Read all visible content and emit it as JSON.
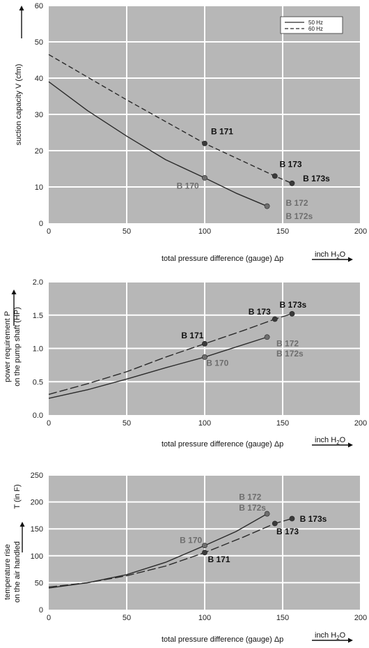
{
  "chart_data": [
    {
      "type": "line",
      "ylabel": "suction capacity V (cfm)",
      "xlabel": "total pressure difference (gauge)  Δp",
      "unit_main": "inch H",
      "unit_sub": "2",
      "unit_tail": "O",
      "xlim": [
        0,
        200
      ],
      "ylim": [
        0,
        60
      ],
      "xticks": [
        "0",
        "50",
        "100",
        "150",
        "200"
      ],
      "yticks": [
        "0",
        "10",
        "20",
        "30",
        "40",
        "50",
        "60"
      ],
      "legend": [
        "50 Hz",
        "60 Hz"
      ],
      "series": [
        {
          "name": "50 Hz",
          "style": "solid",
          "x": [
            0,
            25,
            50,
            75,
            100,
            120,
            140
          ],
          "y": [
            39,
            31,
            24,
            17.5,
            12.5,
            8.3,
            4.7
          ]
        },
        {
          "name": "60 Hz",
          "style": "dashed",
          "x": [
            0,
            50,
            100,
            145,
            156
          ],
          "y": [
            46.5,
            34,
            22,
            13,
            11
          ]
        }
      ],
      "points": [
        {
          "x": 100,
          "y": 22,
          "color": "#3a3a3a"
        },
        {
          "x": 145,
          "y": 13,
          "color": "#3a3a3a"
        },
        {
          "x": 156,
          "y": 11,
          "color": "#3a3a3a"
        },
        {
          "x": 100,
          "y": 12.5,
          "color": "#6e6e6e"
        },
        {
          "x": 140,
          "y": 4.7,
          "color": "#6e6e6e"
        }
      ],
      "labels": [
        {
          "text": "B 171",
          "x": 104,
          "y": 24.5,
          "tone": "dark"
        },
        {
          "text": "B 173",
          "x": 148,
          "y": 15.5,
          "tone": "dark"
        },
        {
          "text": "B 173s",
          "x": 163,
          "y": 11.5,
          "tone": "dark"
        },
        {
          "text": "B 170",
          "x": 82,
          "y": 9.5,
          "tone": "grey"
        },
        {
          "text": "B 172",
          "x": 152,
          "y": 4.8,
          "tone": "grey"
        },
        {
          "text": "B 172s",
          "x": 152,
          "y": 1.2,
          "tone": "grey"
        }
      ]
    },
    {
      "type": "line",
      "ylabel": "power requirement P",
      "ylabel2": "on the pump shaft (HP)",
      "xlabel": "total pressure difference (gauge)  Δp",
      "unit_main": "inch H",
      "unit_sub": "2",
      "unit_tail": "O",
      "xlim": [
        0,
        200
      ],
      "ylim": [
        0,
        2.0
      ],
      "xticks": [
        "0",
        "50",
        "100",
        "150",
        "200"
      ],
      "yticks": [
        "0.0",
        "0.5",
        "1.0",
        "1.5",
        "2.0"
      ],
      "series": [
        {
          "name": "50 Hz",
          "style": "solid",
          "x": [
            0,
            25,
            50,
            75,
            100,
            120,
            140
          ],
          "y": [
            0.25,
            0.38,
            0.54,
            0.71,
            0.87,
            1.02,
            1.17
          ]
        },
        {
          "name": "60 Hz",
          "style": "dashed",
          "x": [
            0,
            25,
            50,
            75,
            100,
            125,
            145,
            156
          ],
          "y": [
            0.31,
            0.47,
            0.65,
            0.87,
            1.07,
            1.27,
            1.44,
            1.52
          ]
        }
      ],
      "points": [
        {
          "x": 100,
          "y": 1.07,
          "color": "#3a3a3a"
        },
        {
          "x": 145,
          "y": 1.44,
          "color": "#3a3a3a"
        },
        {
          "x": 156,
          "y": 1.52,
          "color": "#3a3a3a"
        },
        {
          "x": 100,
          "y": 0.87,
          "color": "#6e6e6e"
        },
        {
          "x": 140,
          "y": 1.17,
          "color": "#6e6e6e"
        }
      ],
      "labels": [
        {
          "text": "B 171",
          "x": 85,
          "y": 1.15,
          "tone": "dark"
        },
        {
          "text": "B 173",
          "x": 128,
          "y": 1.51,
          "tone": "dark"
        },
        {
          "text": "B 173s",
          "x": 148,
          "y": 1.61,
          "tone": "dark"
        },
        {
          "text": "B 170",
          "x": 101,
          "y": 0.74,
          "tone": "grey"
        },
        {
          "text": "B 172",
          "x": 146,
          "y": 1.03,
          "tone": "grey"
        },
        {
          "text": "B 172s",
          "x": 146,
          "y": 0.88,
          "tone": "grey"
        }
      ]
    },
    {
      "type": "line",
      "ylabel": "temperature rise",
      "ylabel2": "on the air handled",
      "ylabel_top": "T   (in F)",
      "xlabel": "total pressure difference (gauge)  Δp",
      "unit_main": "inch H",
      "unit_sub": "2",
      "unit_tail": "O",
      "xlim": [
        0,
        200
      ],
      "ylim": [
        0,
        250
      ],
      "xticks": [
        "0",
        "50",
        "100",
        "150",
        "200"
      ],
      "yticks": [
        "0",
        "50",
        "100",
        "150",
        "200",
        "250"
      ],
      "series": [
        {
          "name": "50 Hz",
          "style": "solid",
          "x": [
            0,
            25,
            50,
            75,
            100,
            120,
            140
          ],
          "y": [
            40,
            50,
            65,
            88,
            119,
            145,
            178
          ]
        },
        {
          "name": "60 Hz",
          "style": "dashed",
          "x": [
            0,
            25,
            50,
            75,
            100,
            125,
            145,
            156
          ],
          "y": [
            42,
            50,
            63,
            81,
            106,
            135,
            160,
            169
          ]
        }
      ],
      "points": [
        {
          "x": 100,
          "y": 106,
          "color": "#3a3a3a"
        },
        {
          "x": 145,
          "y": 160,
          "color": "#3a3a3a"
        },
        {
          "x": 156,
          "y": 169,
          "color": "#3a3a3a"
        },
        {
          "x": 100,
          "y": 119,
          "color": "#6e6e6e"
        },
        {
          "x": 140,
          "y": 178,
          "color": "#6e6e6e"
        }
      ],
      "labels": [
        {
          "text": "B 170",
          "x": 84,
          "y": 124,
          "tone": "grey"
        },
        {
          "text": "B 171",
          "x": 102,
          "y": 88,
          "tone": "dark"
        },
        {
          "text": "B 172",
          "x": 122,
          "y": 204,
          "tone": "grey"
        },
        {
          "text": "B 172s",
          "x": 122,
          "y": 184,
          "tone": "grey"
        },
        {
          "text": "B 173",
          "x": 146,
          "y": 140,
          "tone": "dark"
        },
        {
          "text": "B 173s",
          "x": 161,
          "y": 163,
          "tone": "dark"
        }
      ]
    }
  ],
  "colors": {
    "plot_bg": "#b7b7b7",
    "grid": "#ffffff",
    "line": "#2b2b2b",
    "dark_point": "#3a3a3a",
    "grey_point": "#6e6e6e"
  }
}
